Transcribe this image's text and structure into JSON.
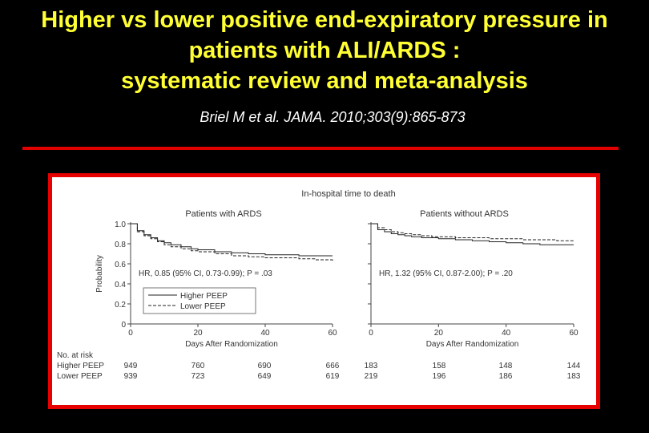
{
  "slide": {
    "title_lines": [
      "Higher vs lower positive end-expiratory pressure in",
      "patients with ALI/ARDS :",
      "systematic review and meta-analysis"
    ],
    "citation": "Briel M et al. JAMA. 2010;303(9):865-873",
    "colors": {
      "title": "#ffff33",
      "accent_red": "#e00000",
      "background": "#000000"
    }
  },
  "figure": {
    "title": "In-hospital time to death",
    "risk_table": {
      "header": "No. at risk",
      "rows": [
        {
          "label": "Higher PEEP",
          "left": [
            "949",
            "760",
            "690",
            "666"
          ],
          "right": [
            "183",
            "158",
            "148",
            "144"
          ]
        },
        {
          "label": "Lower PEEP",
          "left": [
            "939",
            "723",
            "649",
            "619"
          ],
          "right": [
            "219",
            "196",
            "186",
            "183"
          ]
        }
      ]
    }
  },
  "chart_data": [
    {
      "type": "line",
      "title": "Patients with ARDS",
      "xlabel": "Days After Randomization",
      "ylabel": "Probability",
      "xlim": [
        0,
        60
      ],
      "ylim": [
        0,
        1.0
      ],
      "xticks": [
        "0",
        "20",
        "40",
        "60"
      ],
      "yticks": [
        "0",
        "0.2",
        "0.4",
        "0.6",
        "0.8",
        "1.0"
      ],
      "annotation": "HR, 0.85 (95% CI, 0.73-0.99); P = .03",
      "legend": [
        {
          "name": "Higher PEEP",
          "style": "solid"
        },
        {
          "name": "Lower PEEP",
          "style": "dashed"
        }
      ],
      "series": [
        {
          "name": "Higher PEEP",
          "style": "solid",
          "x": [
            0,
            2,
            4,
            6,
            8,
            10,
            12,
            15,
            18,
            20,
            25,
            30,
            35,
            40,
            45,
            50,
            55,
            60
          ],
          "y": [
            1.0,
            0.93,
            0.89,
            0.86,
            0.83,
            0.81,
            0.79,
            0.77,
            0.75,
            0.74,
            0.72,
            0.71,
            0.7,
            0.69,
            0.69,
            0.68,
            0.68,
            0.68
          ]
        },
        {
          "name": "Lower PEEP",
          "style": "dashed",
          "x": [
            0,
            2,
            4,
            6,
            8,
            10,
            12,
            15,
            18,
            20,
            25,
            30,
            35,
            40,
            45,
            50,
            55,
            60
          ],
          "y": [
            1.0,
            0.92,
            0.88,
            0.85,
            0.82,
            0.79,
            0.77,
            0.75,
            0.73,
            0.72,
            0.7,
            0.68,
            0.67,
            0.66,
            0.66,
            0.65,
            0.64,
            0.63
          ]
        }
      ]
    },
    {
      "type": "line",
      "title": "Patients without ARDS",
      "xlabel": "Days After Randomization",
      "xlim": [
        0,
        60
      ],
      "ylim": [
        0,
        1.0
      ],
      "xticks": [
        "0",
        "20",
        "40",
        "60"
      ],
      "annotation": "HR, 1.32 (95% CI, 0.87-2.00); P = .20",
      "series": [
        {
          "name": "Higher PEEP",
          "style": "solid",
          "x": [
            0,
            2,
            4,
            6,
            8,
            10,
            12,
            15,
            18,
            20,
            25,
            30,
            35,
            40,
            45,
            50,
            55,
            60
          ],
          "y": [
            1.0,
            0.94,
            0.92,
            0.9,
            0.89,
            0.88,
            0.87,
            0.86,
            0.86,
            0.85,
            0.84,
            0.83,
            0.82,
            0.81,
            0.8,
            0.79,
            0.79,
            0.79
          ]
        },
        {
          "name": "Lower PEEP",
          "style": "dashed",
          "x": [
            0,
            2,
            4,
            6,
            8,
            10,
            12,
            15,
            18,
            20,
            25,
            30,
            35,
            40,
            45,
            50,
            55,
            60
          ],
          "y": [
            1.0,
            0.96,
            0.94,
            0.92,
            0.91,
            0.9,
            0.89,
            0.88,
            0.87,
            0.87,
            0.86,
            0.86,
            0.85,
            0.85,
            0.84,
            0.84,
            0.83,
            0.83
          ]
        }
      ]
    }
  ]
}
